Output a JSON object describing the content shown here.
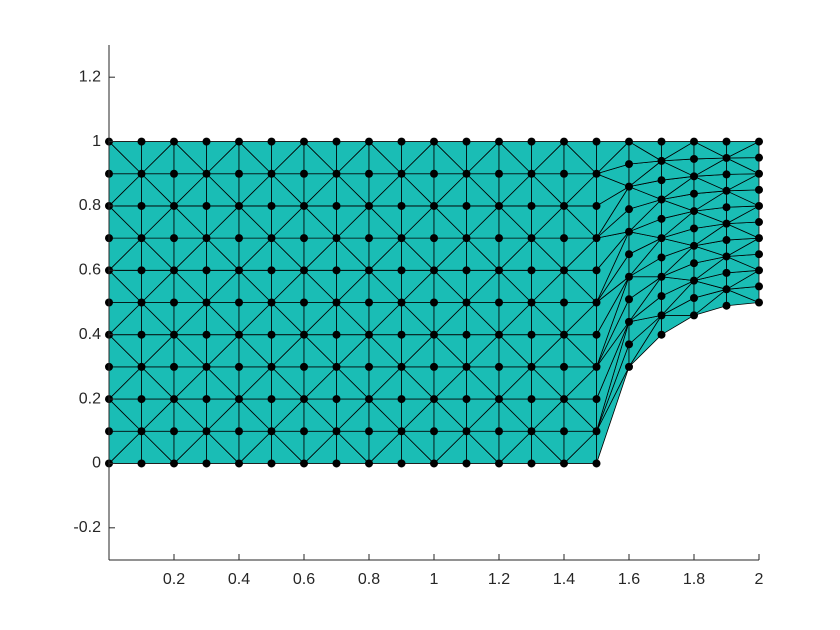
{
  "chart_data": {
    "type": "mesh",
    "xlim": [
      0,
      2
    ],
    "ylim": [
      -0.3,
      1.3
    ],
    "xticks": [
      0.2,
      0.4,
      0.6,
      0.8,
      1,
      1.2,
      1.4,
      1.6,
      1.8,
      2
    ],
    "yticks": [
      -0.2,
      0,
      0.2,
      0.4,
      0.6,
      0.8,
      1,
      1.2
    ],
    "color": "#1abdb5",
    "edge_color": "#000000",
    "node_color": "#000000",
    "x": [
      0,
      0.1,
      0.2,
      0.3,
      0.4,
      0.5,
      0.6,
      0.7,
      0.8,
      0.9,
      1,
      1.1,
      1.2,
      1.3,
      1.4,
      1.5,
      1.6,
      1.7,
      1.8,
      1.9,
      2
    ],
    "y": [
      [
        0,
        0.1,
        0.2,
        0.3,
        0.4,
        0.5,
        0.6,
        0.7,
        0.8,
        0.9,
        1
      ],
      [
        0,
        0.1,
        0.2,
        0.3,
        0.4,
        0.5,
        0.6,
        0.7,
        0.8,
        0.9,
        1
      ],
      [
        0,
        0.1,
        0.2,
        0.3,
        0.4,
        0.5,
        0.6,
        0.7,
        0.8,
        0.9,
        1
      ],
      [
        0,
        0.1,
        0.2,
        0.3,
        0.4,
        0.5,
        0.6,
        0.7,
        0.8,
        0.9,
        1
      ],
      [
        0,
        0.1,
        0.2,
        0.3,
        0.4,
        0.5,
        0.6,
        0.7,
        0.8,
        0.9,
        1
      ],
      [
        0,
        0.1,
        0.2,
        0.3,
        0.4,
        0.5,
        0.6,
        0.7,
        0.8,
        0.9,
        1
      ],
      [
        0,
        0.1,
        0.2,
        0.3,
        0.4,
        0.5,
        0.6,
        0.7,
        0.8,
        0.9,
        1
      ],
      [
        0,
        0.1,
        0.2,
        0.3,
        0.4,
        0.5,
        0.6,
        0.7,
        0.8,
        0.9,
        1
      ],
      [
        0,
        0.1,
        0.2,
        0.3,
        0.4,
        0.5,
        0.6,
        0.7,
        0.8,
        0.9,
        1
      ],
      [
        0,
        0.1,
        0.2,
        0.3,
        0.4,
        0.5,
        0.6,
        0.7,
        0.8,
        0.9,
        1
      ],
      [
        0,
        0.1,
        0.2,
        0.3,
        0.4,
        0.5,
        0.6,
        0.7,
        0.8,
        0.9,
        1
      ],
      [
        0,
        0.1,
        0.2,
        0.3,
        0.4,
        0.5,
        0.6,
        0.7,
        0.8,
        0.9,
        1
      ],
      [
        0,
        0.1,
        0.2,
        0.3,
        0.4,
        0.5,
        0.6,
        0.7,
        0.8,
        0.9,
        1
      ],
      [
        0,
        0.1,
        0.2,
        0.3,
        0.4,
        0.5,
        0.6,
        0.7,
        0.8,
        0.9,
        1
      ],
      [
        0,
        0.1,
        0.2,
        0.3,
        0.4,
        0.5,
        0.6,
        0.7,
        0.8,
        0.9,
        1
      ],
      [
        0,
        0.1,
        0.2,
        0.3,
        0.4,
        0.5,
        0.6,
        0.7,
        0.8,
        0.9,
        1
      ],
      [
        0.3,
        0.37,
        0.44,
        0.51,
        0.58,
        0.65,
        0.72,
        0.79,
        0.86,
        0.93,
        1
      ],
      [
        0.4,
        0.46,
        0.52,
        0.58,
        0.64,
        0.7,
        0.76,
        0.82,
        0.88,
        0.94,
        1
      ],
      [
        0.46,
        0.514,
        0.568,
        0.622,
        0.676,
        0.73,
        0.784,
        0.838,
        0.892,
        0.946,
        1
      ],
      [
        0.49,
        0.541,
        0.592,
        0.643,
        0.694,
        0.745,
        0.796,
        0.847,
        0.898,
        0.949,
        1
      ],
      [
        0.5,
        0.55,
        0.6,
        0.65,
        0.7,
        0.75,
        0.8,
        0.85,
        0.9,
        0.95,
        1
      ]
    ]
  }
}
